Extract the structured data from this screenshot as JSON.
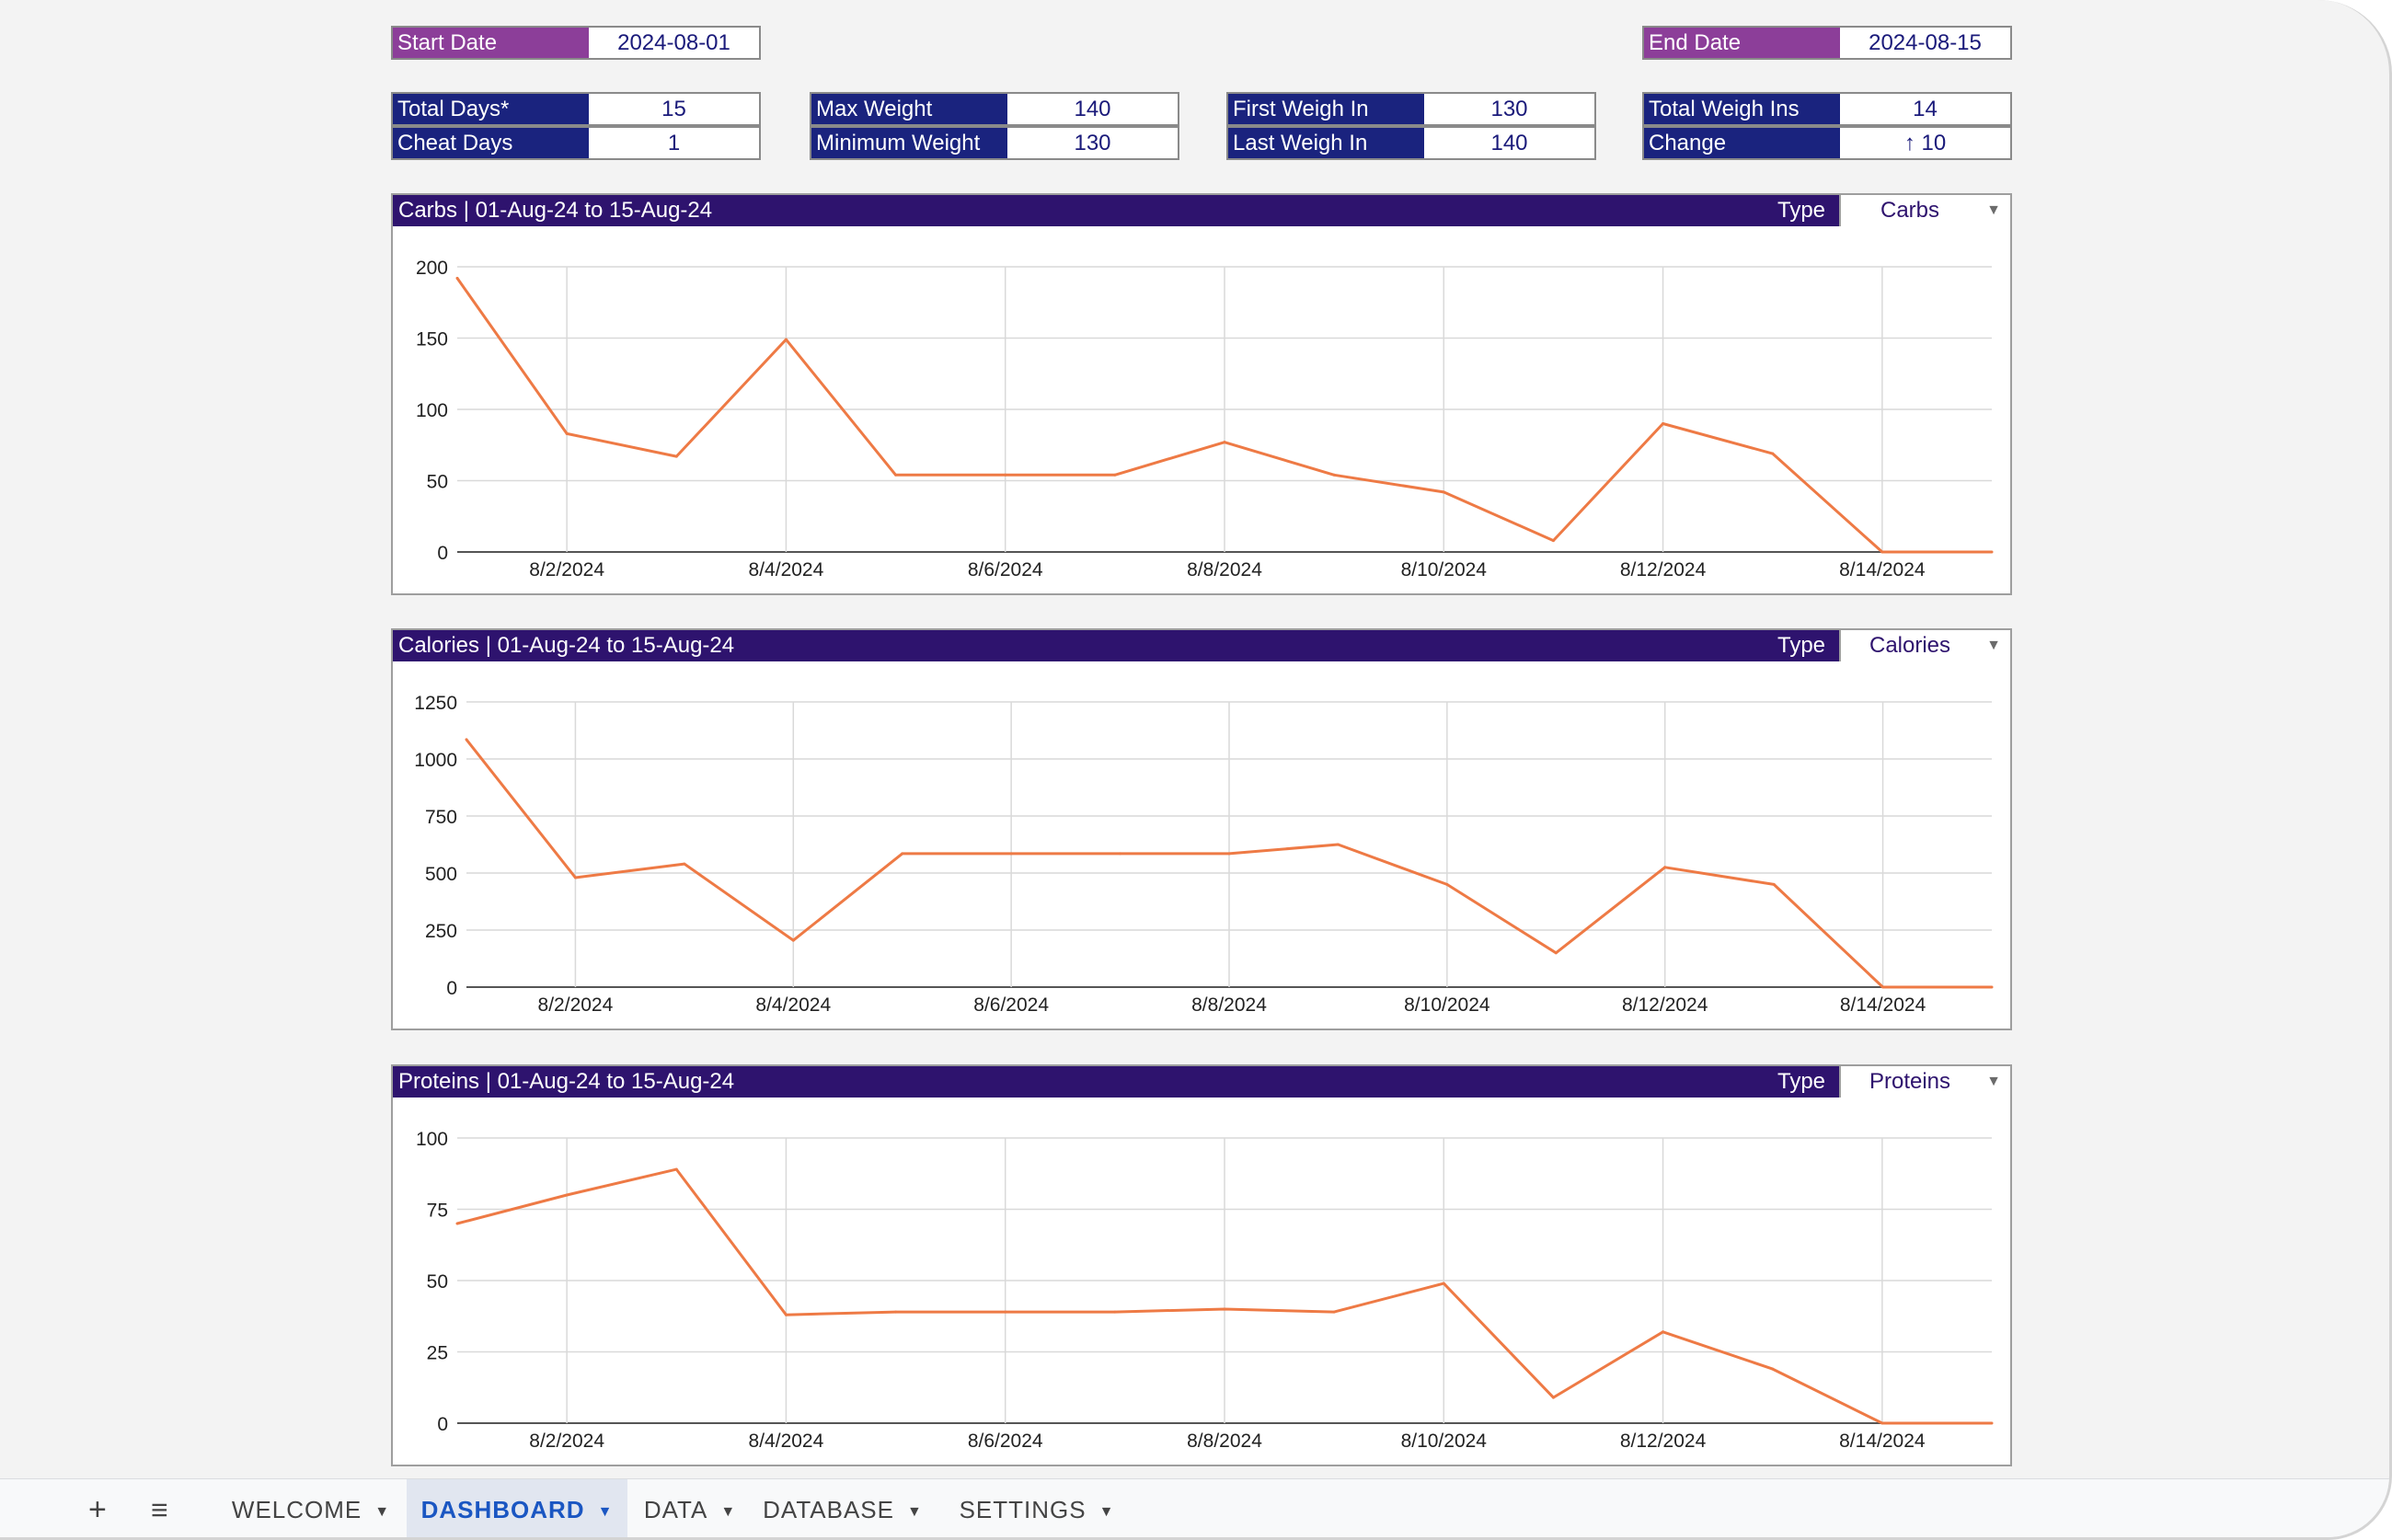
{
  "dates": {
    "start_label": "Start Date",
    "start_value": "2024-08-01",
    "end_label": "End Date",
    "end_value": "2024-08-15"
  },
  "stats": [
    {
      "label": "Total Days*",
      "value": "15"
    },
    {
      "label": "Cheat Days",
      "value": "1"
    },
    {
      "label": "Max Weight",
      "value": "140"
    },
    {
      "label": "Minimum Weight",
      "value": "130"
    },
    {
      "label": "First Weigh In",
      "value": "130"
    },
    {
      "label": "Last Weigh In",
      "value": "140"
    },
    {
      "label": "Total Weigh Ins",
      "value": "14"
    },
    {
      "label": "Change",
      "value": "↑ 10"
    }
  ],
  "panels": [
    {
      "title": "Carbs  |  01-Aug-24 to 15-Aug-24",
      "type_label": "Type",
      "type_value": "Carbs"
    },
    {
      "title": "Calories  |  01-Aug-24 to 15-Aug-24",
      "type_label": "Type",
      "type_value": "Calories"
    },
    {
      "title": "Proteins  |  01-Aug-24 to 15-Aug-24",
      "type_label": "Type",
      "type_value": "Proteins"
    }
  ],
  "chart_data": [
    {
      "type": "line",
      "x": [
        "8/1/2024",
        "8/2/2024",
        "8/3/2024",
        "8/4/2024",
        "8/5/2024",
        "8/6/2024",
        "8/7/2024",
        "8/8/2024",
        "8/9/2024",
        "8/10/2024",
        "8/11/2024",
        "8/12/2024",
        "8/13/2024",
        "8/14/2024",
        "8/15/2024"
      ],
      "x_tick_labels": [
        "8/2/2024",
        "8/4/2024",
        "8/6/2024",
        "8/8/2024",
        "8/10/2024",
        "8/12/2024",
        "8/14/2024"
      ],
      "series": [
        {
          "values": [
            192,
            83,
            67,
            149,
            54,
            54,
            54,
            77,
            54,
            42,
            8,
            90,
            69,
            0,
            0
          ]
        }
      ],
      "yticks": [
        0,
        50,
        100,
        150,
        200
      ],
      "ylim": [
        0,
        200
      ],
      "grid": true,
      "line_color": "#ee7a45"
    },
    {
      "type": "line",
      "x": [
        "8/1/2024",
        "8/2/2024",
        "8/3/2024",
        "8/4/2024",
        "8/5/2024",
        "8/6/2024",
        "8/7/2024",
        "8/8/2024",
        "8/9/2024",
        "8/10/2024",
        "8/11/2024",
        "8/12/2024",
        "8/13/2024",
        "8/14/2024",
        "8/15/2024"
      ],
      "x_tick_labels": [
        "8/2/2024",
        "8/4/2024",
        "8/6/2024",
        "8/8/2024",
        "8/10/2024",
        "8/12/2024",
        "8/14/2024"
      ],
      "series": [
        {
          "values": [
            1085,
            480,
            540,
            205,
            585,
            585,
            585,
            585,
            625,
            450,
            150,
            525,
            450,
            0,
            0
          ]
        }
      ],
      "yticks": [
        0,
        250,
        500,
        750,
        1000,
        1250
      ],
      "ylim": [
        0,
        1250
      ],
      "grid": true,
      "line_color": "#ee7a45"
    },
    {
      "type": "line",
      "x": [
        "8/1/2024",
        "8/2/2024",
        "8/3/2024",
        "8/4/2024",
        "8/5/2024",
        "8/6/2024",
        "8/7/2024",
        "8/8/2024",
        "8/9/2024",
        "8/10/2024",
        "8/11/2024",
        "8/12/2024",
        "8/13/2024",
        "8/14/2024",
        "8/15/2024"
      ],
      "x_tick_labels": [
        "8/2/2024",
        "8/4/2024",
        "8/6/2024",
        "8/8/2024",
        "8/10/2024",
        "8/12/2024",
        "8/14/2024"
      ],
      "series": [
        {
          "values": [
            70,
            80,
            89,
            38,
            39,
            39,
            39,
            40,
            39,
            49,
            9,
            32,
            19,
            0,
            0
          ]
        }
      ],
      "yticks": [
        0,
        25,
        50,
        75,
        100
      ],
      "ylim": [
        0,
        100
      ],
      "grid": true,
      "line_color": "#ee7a45"
    }
  ],
  "tabbar": {
    "add_icon": "plus-icon",
    "menu_icon": "menu-icon",
    "tabs": [
      {
        "label": "WELCOME",
        "active": false
      },
      {
        "label": "DASHBOARD",
        "active": true
      },
      {
        "label": "DATA",
        "active": false
      },
      {
        "label": "DATABASE",
        "active": false
      },
      {
        "label": "SETTINGS",
        "active": false
      }
    ]
  }
}
